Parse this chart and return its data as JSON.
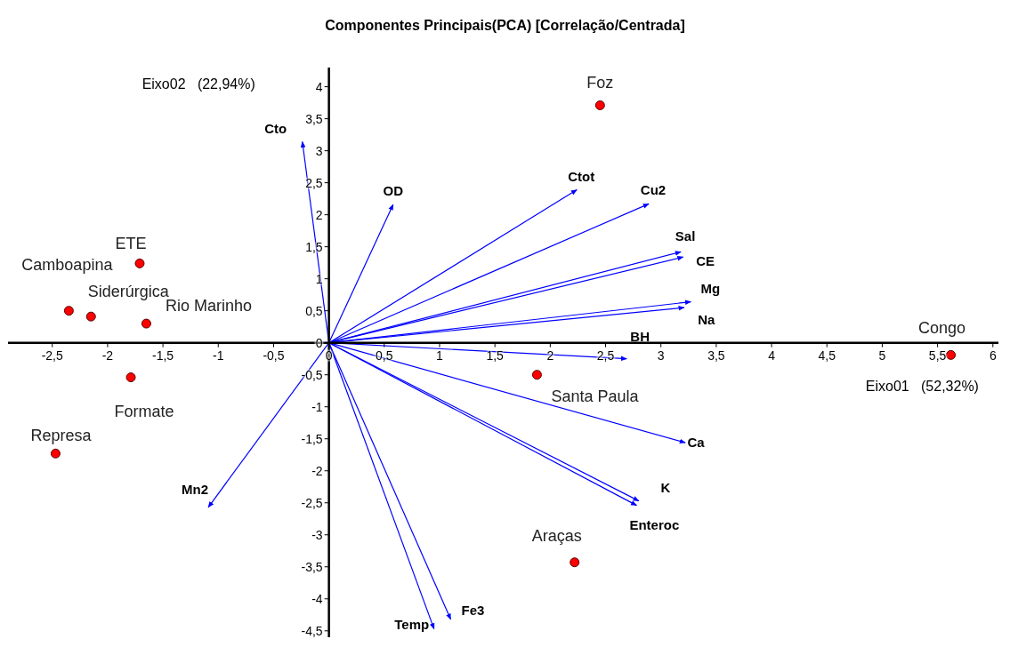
{
  "chart_data": {
    "type": "scatter",
    "title": "Componentes Principais(PCA) [Correlação/Centrada]",
    "xlabel": "Eixo01   (52,32%)",
    "ylabel": "Eixo02   (22,94%)",
    "xlim": [
      -2.9,
      6.05
    ],
    "ylim": [
      -4.6,
      4.3
    ],
    "xticks": [
      {
        "value": -2.5,
        "label": "-2,5"
      },
      -2,
      {
        "value": -1.5,
        "label": "-1,5"
      },
      -1,
      {
        "value": -0.5,
        "label": "-0,5"
      },
      0,
      {
        "value": 0.5,
        "label": "0,5"
      },
      1,
      {
        "value": 1.5,
        "label": "1,5"
      },
      2,
      {
        "value": 2.5,
        "label": "2,5"
      },
      3,
      {
        "value": 3.5,
        "label": "3,5"
      },
      4,
      {
        "value": 4.5,
        "label": "4,5"
      },
      5,
      {
        "value": 5.5,
        "label": "5,5"
      },
      6
    ],
    "yticks": [
      {
        "value": -4.5,
        "label": "-4,5"
      },
      -4,
      {
        "value": -3.5,
        "label": "-3,5"
      },
      -3,
      {
        "value": -2.5,
        "label": "-2,5"
      },
      -2,
      {
        "value": -1.5,
        "label": "-1,5"
      },
      -1,
      {
        "value": -0.5,
        "label": "-0,5"
      },
      0,
      {
        "value": 0.5,
        "label": "0,5"
      },
      1,
      {
        "value": 1.5,
        "label": "1,5"
      },
      2,
      {
        "value": 2.5,
        "label": "2,5"
      },
      3,
      {
        "value": 3.5,
        "label": "3,5"
      },
      4
    ],
    "grid": false,
    "legend": false,
    "series": [
      {
        "type": "scatter",
        "color": "#ff0000",
        "marker": "circle",
        "x": [
          2.45,
          -1.71,
          -2.35,
          -2.15,
          -1.65,
          -1.79,
          -2.47,
          1.88,
          2.22,
          5.62
        ],
        "values": [
          3.71,
          1.24,
          0.5,
          0.41,
          0.3,
          -0.54,
          -1.73,
          -0.5,
          -3.43,
          -0.19
        ],
        "value_labels": [
          "Foz",
          "ETE",
          "Camboapina",
          "Siderúrgica",
          "Rio Marinho",
          "Formate",
          "Represa",
          "Santa Paula",
          "Araças",
          "Congo"
        ]
      },
      {
        "type": "line",
        "name": "Cto",
        "color": "#0000ff",
        "marker": "none",
        "x": [
          0,
          -0.24
        ],
        "values": [
          0,
          3.14
        ]
      },
      {
        "type": "line",
        "name": "OD",
        "color": "#0000ff",
        "marker": "none",
        "x": [
          0,
          0.58
        ],
        "values": [
          0,
          2.16
        ]
      },
      {
        "type": "line",
        "name": "Ctot",
        "color": "#0000ff",
        "marker": "none",
        "x": [
          0,
          2.24
        ],
        "values": [
          0,
          2.39
        ]
      },
      {
        "type": "line",
        "name": "Cu2",
        "color": "#0000ff",
        "marker": "none",
        "x": [
          0,
          2.89
        ],
        "values": [
          0,
          2.17
        ]
      },
      {
        "type": "line",
        "name": "Sal",
        "color": "#0000ff",
        "marker": "none",
        "x": [
          0,
          3.18
        ],
        "values": [
          0,
          1.42
        ]
      },
      {
        "type": "line",
        "name": "CE",
        "color": "#0000ff",
        "marker": "none",
        "x": [
          0,
          3.2
        ],
        "values": [
          0,
          1.34
        ]
      },
      {
        "type": "line",
        "name": "Mg",
        "color": "#0000ff",
        "marker": "none",
        "x": [
          0,
          3.27
        ],
        "values": [
          0,
          0.64
        ]
      },
      {
        "type": "line",
        "name": "Na",
        "color": "#0000ff",
        "marker": "none",
        "x": [
          0,
          3.21
        ],
        "values": [
          0,
          0.55
        ]
      },
      {
        "type": "line",
        "name": "BH",
        "color": "#0000ff",
        "marker": "none",
        "x": [
          0,
          2.69
        ],
        "values": [
          0,
          -0.25
        ]
      },
      {
        "type": "line",
        "name": "Ca",
        "color": "#0000ff",
        "marker": "none",
        "x": [
          0,
          3.22
        ],
        "values": [
          0,
          -1.56
        ]
      },
      {
        "type": "line",
        "name": "K",
        "color": "#0000ff",
        "marker": "none",
        "x": [
          0,
          2.8
        ],
        "values": [
          0,
          -2.47
        ]
      },
      {
        "type": "line",
        "name": "Enteroc",
        "color": "#0000ff",
        "marker": "none",
        "x": [
          0,
          2.78
        ],
        "values": [
          0,
          -2.54
        ]
      },
      {
        "type": "line",
        "name": "Mn2",
        "color": "#0000ff",
        "marker": "none",
        "x": [
          0,
          -1.09
        ],
        "values": [
          0,
          -2.57
        ]
      },
      {
        "type": "line",
        "name": "Temp",
        "color": "#0000ff",
        "marker": "none",
        "x": [
          0,
          0.95
        ],
        "values": [
          0,
          -4.47
        ]
      },
      {
        "type": "line",
        "name": "Fe3",
        "color": "#0000ff",
        "marker": "none",
        "x": [
          0,
          1.1
        ],
        "values": [
          0,
          -4.32
        ]
      }
    ]
  }
}
